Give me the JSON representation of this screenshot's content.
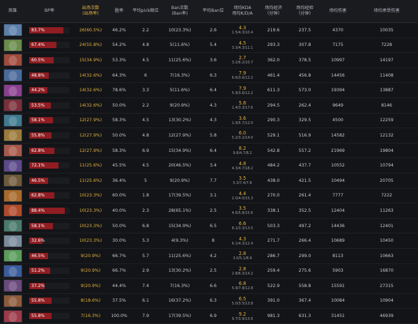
{
  "headers": {
    "hero": "英雄",
    "bp_rate": "BP率",
    "pick_count": "出场次数",
    "pick_rate": "(出场率)",
    "win_rate": "胜率",
    "avg_pick": "平均pick顺位",
    "ban_count": "Ban次数",
    "ban_rate": "(Ban率)",
    "avg_ban": "平均Ban位",
    "avg_kda": "场均KDA",
    "kda_sub": "场均K/D/A",
    "gpm": "场均经济",
    "gpm_sub": "（分钟）",
    "xpm": "场均经验",
    "xpm_sub": "（分钟）",
    "hero_damage": "场均伤害",
    "damage_taken": "场均承受伤害"
  },
  "colors": {
    "accent": "#e3b340",
    "bp_bar": "#8f1d22",
    "background": "#131417"
  },
  "rows": [
    {
      "hero_icon": "hero-portrait-1",
      "portrait_color": "#5b7fa8",
      "bp_rate": "83.7%",
      "bp_value": 83.7,
      "picks": "26(60.5%)",
      "win_rate": "46.2%",
      "avg_pick": "2.2",
      "bans": "10(23.3%)",
      "avg_ban": "2.6",
      "kda": "4.3",
      "kda_detail": "1.5/4.3/10.4",
      "gpm": "219.6",
      "xpm": "237.5",
      "hero_damage": "4370",
      "damage_taken": "10035"
    },
    {
      "hero_icon": "hero-portrait-2",
      "portrait_color": "#6a8c4a",
      "bp_rate": "67.4%",
      "bp_value": 67.4,
      "picks": "24(55.8%)",
      "win_rate": "54.2%",
      "avg_pick": "4.8",
      "bans": "5(11.6%)",
      "avg_ban": "5.4",
      "kda": "4.5",
      "kda_detail": "3.3/4.3/11.1",
      "gpm": "293.3",
      "xpm": "307.8",
      "hero_damage": "7175",
      "damage_taken": "7228"
    },
    {
      "hero_icon": "hero-portrait-3",
      "portrait_color": "#a04a3a",
      "bp_rate": "60.5%",
      "bp_value": 60.5,
      "picks": "15(34.9%)",
      "win_rate": "53.3%",
      "avg_pick": "4.5",
      "bans": "11(25.6%)",
      "avg_ban": "3.6",
      "kda": "2.7",
      "kda_detail": "3.2/6.2/10.7",
      "gpm": "362.0",
      "xpm": "378.5",
      "hero_damage": "10997",
      "damage_taken": "14197"
    },
    {
      "hero_icon": "hero-portrait-4",
      "portrait_color": "#4a6a9c",
      "bp_rate": "48.8%",
      "bp_value": 48.8,
      "picks": "14(32.6%)",
      "win_rate": "64.3%",
      "avg_pick": "6",
      "bans": "7(16.3%)",
      "avg_ban": "6.3",
      "kda": "7.9",
      "kda_detail": "6.6/3.6/12.2",
      "gpm": "461.4",
      "xpm": "456.8",
      "hero_damage": "14456",
      "damage_taken": "11408"
    },
    {
      "hero_icon": "hero-portrait-5",
      "portrait_color": "#8a3f8f",
      "bp_rate": "44.2%",
      "bp_value": 44.2,
      "picks": "14(32.6%)",
      "win_rate": "78.6%",
      "avg_pick": "3.3",
      "bans": "5(11.6%)",
      "avg_ban": "6.4",
      "kda": "7.9",
      "kda_detail": "5.9/3.6/12.2",
      "gpm": "611.3",
      "xpm": "573.0",
      "hero_damage": "19394",
      "damage_taken": "13887"
    },
    {
      "hero_icon": "hero-portrait-6",
      "portrait_color": "#7a2f3a",
      "bp_rate": "53.5%",
      "bp_value": 53.5,
      "picks": "14(32.6%)",
      "win_rate": "50.0%",
      "avg_pick": "2.2",
      "bans": "9(20.9%)",
      "avg_ban": "4.3",
      "kda": "5.8",
      "kda_detail": "1.4/3.3/17.6",
      "gpm": "294.5",
      "xpm": "262.4",
      "hero_damage": "9649",
      "damage_taken": "8146"
    },
    {
      "hero_icon": "hero-portrait-7",
      "portrait_color": "#3f7a8f",
      "bp_rate": "58.1%",
      "bp_value": 58.1,
      "picks": "12(27.9%)",
      "win_rate": "58.3%",
      "avg_pick": "4.5",
      "bans": "13(30.2%)",
      "avg_ban": "4.3",
      "kda": "3.6",
      "kda_detail": "1.9/5.7/12.0",
      "gpm": "290.3",
      "xpm": "329.5",
      "hero_damage": "4500",
      "damage_taken": "12259"
    },
    {
      "hero_icon": "hero-portrait-8",
      "portrait_color": "#9c7a3a",
      "bp_rate": "55.8%",
      "bp_value": 55.8,
      "picks": "12(27.9%)",
      "win_rate": "50.0%",
      "avg_pick": "4.8",
      "bans": "12(27.9%)",
      "avg_ban": "5.8",
      "kda": "6.0",
      "kda_detail": "5.2/3.2/14.0",
      "gpm": "529.1",
      "xpm": "516.9",
      "hero_damage": "14582",
      "damage_taken": "12132"
    },
    {
      "hero_icon": "hero-portrait-9",
      "portrait_color": "#a8584a",
      "bp_rate": "62.8%",
      "bp_value": 62.8,
      "picks": "12(27.9%)",
      "win_rate": "58.3%",
      "avg_pick": "6.9",
      "bans": "15(34.9%)",
      "avg_ban": "6.4",
      "kda": "8.2",
      "kda_detail": "9.8/4.7/8.2",
      "gpm": "542.8",
      "xpm": "557.2",
      "hero_damage": "21969",
      "damage_taken": "19804"
    },
    {
      "hero_icon": "hero-portrait-10",
      "portrait_color": "#5c4a8c",
      "bp_rate": "72.1%",
      "bp_value": 72.1,
      "picks": "11(25.6%)",
      "win_rate": "45.5%",
      "avg_pick": "4.5",
      "bans": "20(46.5%)",
      "avg_ban": "3.4",
      "kda": "4.8",
      "kda_detail": "4.3/4.7/18.2",
      "gpm": "484.2",
      "xpm": "437.7",
      "hero_damage": "10552",
      "damage_taken": "10794"
    },
    {
      "hero_icon": "hero-portrait-11",
      "portrait_color": "#6e5a3a",
      "bp_rate": "46.5%",
      "bp_value": 46.5,
      "picks": "11(25.6%)",
      "win_rate": "36.4%",
      "avg_pick": "5",
      "bans": "9(20.9%)",
      "avg_ban": "7.7",
      "kda": "3.5",
      "kda_detail": "5.3/7.4/7.8",
      "gpm": "438.0",
      "xpm": "421.5",
      "hero_damage": "10494",
      "damage_taken": "20705"
    },
    {
      "hero_icon": "hero-portrait-12",
      "portrait_color": "#a86a2a",
      "bp_rate": "62.8%",
      "bp_value": 62.8,
      "picks": "10(23.3%)",
      "win_rate": "60.0%",
      "avg_pick": "1.8",
      "bans": "17(39.5%)",
      "avg_ban": "3.1",
      "kda": "4.4",
      "kda_detail": "2.0/4.0/15.3",
      "gpm": "270.0",
      "xpm": "261.4",
      "hero_damage": "7777",
      "damage_taken": "7222"
    },
    {
      "hero_icon": "hero-portrait-13",
      "portrait_color": "#b04a2a",
      "bp_rate": "88.4%",
      "bp_value": 88.4,
      "picks": "10(23.3%)",
      "win_rate": "40.0%",
      "avg_pick": "2.3",
      "bans": "28(65.1%)",
      "avg_ban": "2.5",
      "kda": "3.5",
      "kda_detail": "4.6/5.8/15.6",
      "gpm": "338.1",
      "xpm": "352.5",
      "hero_damage": "12404",
      "damage_taken": "11263"
    },
    {
      "hero_icon": "hero-portrait-14",
      "portrait_color": "#4a7a6a",
      "bp_rate": "58.1%",
      "bp_value": 58.1,
      "picks": "10(23.3%)",
      "win_rate": "50.0%",
      "avg_pick": "6.8",
      "bans": "15(34.9%)",
      "avg_ban": "6.5",
      "kda": "6.6",
      "kda_detail": "8.1/3.3/13.5",
      "gpm": "503.3",
      "xpm": "497.2",
      "hero_damage": "14436",
      "damage_taken": "12401"
    },
    {
      "hero_icon": "hero-portrait-15",
      "portrait_color": "#7a8c9c",
      "bp_rate": "32.6%",
      "bp_value": 32.6,
      "picks": "10(23.3%)",
      "win_rate": "30.0%",
      "avg_pick": "5.3",
      "bans": "4(9.3%)",
      "avg_ban": "8",
      "kda": "4.3",
      "kda_detail": "6.1/4.3/12.4",
      "gpm": "271.7",
      "xpm": "266.4",
      "hero_damage": "10689",
      "damage_taken": "10450"
    },
    {
      "hero_icon": "hero-portrait-16",
      "portrait_color": "#5a9c5a",
      "bp_rate": "46.5%",
      "bp_value": 46.5,
      "picks": "9(20.9%)",
      "win_rate": "66.7%",
      "avg_pick": "5.7",
      "bans": "11(25.6%)",
      "avg_ban": "4.2",
      "kda": "2.8",
      "kda_detail": "3.0/5.1/8.9",
      "gpm": "286.7",
      "xpm": "299.0",
      "hero_damage": "8113",
      "damage_taken": "10663"
    },
    {
      "hero_icon": "hero-portrait-17",
      "portrait_color": "#3a5c9c",
      "bp_rate": "51.2%",
      "bp_value": 51.2,
      "picks": "9(20.9%)",
      "win_rate": "66.7%",
      "avg_pick": "2.9",
      "bans": "13(30.2%)",
      "avg_ban": "2.5",
      "kda": "2.8",
      "kda_detail": "2.8/6.3/14.2",
      "gpm": "259.4",
      "xpm": "275.6",
      "hero_damage": "5903",
      "damage_taken": "16870"
    },
    {
      "hero_icon": "hero-portrait-18",
      "portrait_color": "#6a4a7c",
      "bp_rate": "37.2%",
      "bp_value": 37.2,
      "picks": "9(20.9%)",
      "win_rate": "44.4%",
      "avg_pick": "7.4",
      "bans": "7(16.3%)",
      "avg_ban": "6.6",
      "kda": "6.8",
      "kda_detail": "5.9/7.8/12.8",
      "gpm": "522.9",
      "xpm": "558.8",
      "hero_damage": "15591",
      "damage_taken": "27315"
    },
    {
      "hero_icon": "hero-portrait-19",
      "portrait_color": "#8c5a3a",
      "bp_rate": "55.8%",
      "bp_value": 55.8,
      "picks": "8(18.6%)",
      "win_rate": "37.5%",
      "avg_pick": "6.1",
      "bans": "16(37.2%)",
      "avg_ban": "6.3",
      "kda": "6.5",
      "kda_detail": "5.0/3.5/13.8",
      "gpm": "391.0",
      "xpm": "367.4",
      "hero_damage": "10084",
      "damage_taken": "10904"
    },
    {
      "hero_icon": "hero-portrait-20",
      "portrait_color": "#9c3a4a",
      "bp_rate": "55.8%",
      "bp_value": 55.8,
      "picks": "7(16.3%)",
      "win_rate": "100.0%",
      "avg_pick": "7.9",
      "bans": "17(39.5%)",
      "avg_ban": "6.9",
      "kda": "9.2",
      "kda_detail": "9.7/3.9/13.6",
      "gpm": "981.3",
      "xpm": "631.3",
      "hero_damage": "31451",
      "damage_taken": "46939"
    }
  ]
}
